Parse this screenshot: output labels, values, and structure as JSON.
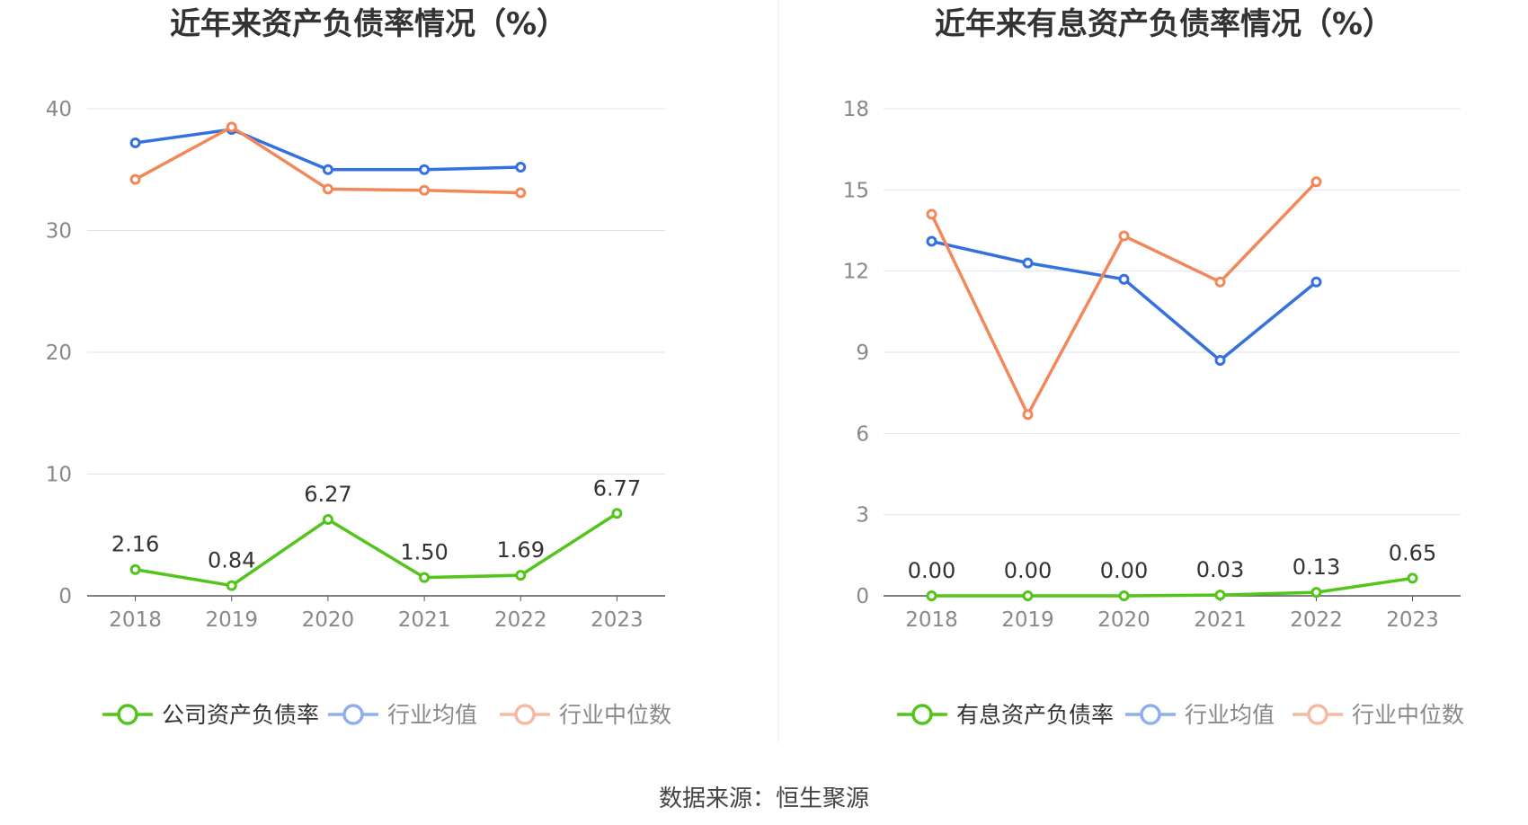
{
  "colors": {
    "company": "#52c41a",
    "avg": "#3470e0",
    "median": "#f2875a",
    "avg_legend": "#8eaef0",
    "median_legend": "#f7b9a1",
    "grid": "#dfe3f0",
    "axis": "#555555",
    "tick": "#888888",
    "title": "#333333",
    "divider": "#eeeeee"
  },
  "source": "数据来源：恒生聚源",
  "chart_data": [
    {
      "type": "line",
      "title": "近年来资产负债率情况（%）",
      "categories": [
        "2018",
        "2019",
        "2020",
        "2021",
        "2022",
        "2023"
      ],
      "ylim": [
        0,
        40
      ],
      "yticks": [
        0,
        10,
        20,
        30,
        40
      ],
      "grid": true,
      "legend_position": "bottom",
      "series": [
        {
          "name": "公司资产负债率",
          "role": "company",
          "values": [
            2.16,
            0.84,
            6.27,
            1.5,
            1.69,
            6.77
          ],
          "labels": [
            "2.16",
            "0.84",
            "6.27",
            "1.50",
            "1.69",
            "6.77"
          ]
        },
        {
          "name": "行业均值",
          "role": "avg",
          "values": [
            37.2,
            38.3,
            35.0,
            35.0,
            35.2,
            null
          ]
        },
        {
          "name": "行业中位数",
          "role": "median",
          "values": [
            34.2,
            38.5,
            33.4,
            33.3,
            33.1,
            null
          ]
        }
      ]
    },
    {
      "type": "line",
      "title": "近年来有息资产负债率情况（%）",
      "categories": [
        "2018",
        "2019",
        "2020",
        "2021",
        "2022",
        "2023"
      ],
      "ylim": [
        0,
        18
      ],
      "yticks": [
        0,
        3,
        6,
        9,
        12,
        15,
        18
      ],
      "grid": true,
      "legend_position": "bottom",
      "series": [
        {
          "name": "有息资产负债率",
          "role": "company",
          "values": [
            0.0,
            0.0,
            0.0,
            0.03,
            0.13,
            0.65
          ],
          "labels": [
            "0.00",
            "0.00",
            "0.00",
            "0.03",
            "0.13",
            "0.65"
          ]
        },
        {
          "name": "行业均值",
          "role": "avg",
          "values": [
            13.1,
            12.3,
            11.7,
            8.7,
            11.6,
            null
          ]
        },
        {
          "name": "行业中位数",
          "role": "median",
          "values": [
            14.1,
            6.7,
            13.3,
            11.6,
            15.3,
            null
          ]
        }
      ]
    }
  ]
}
